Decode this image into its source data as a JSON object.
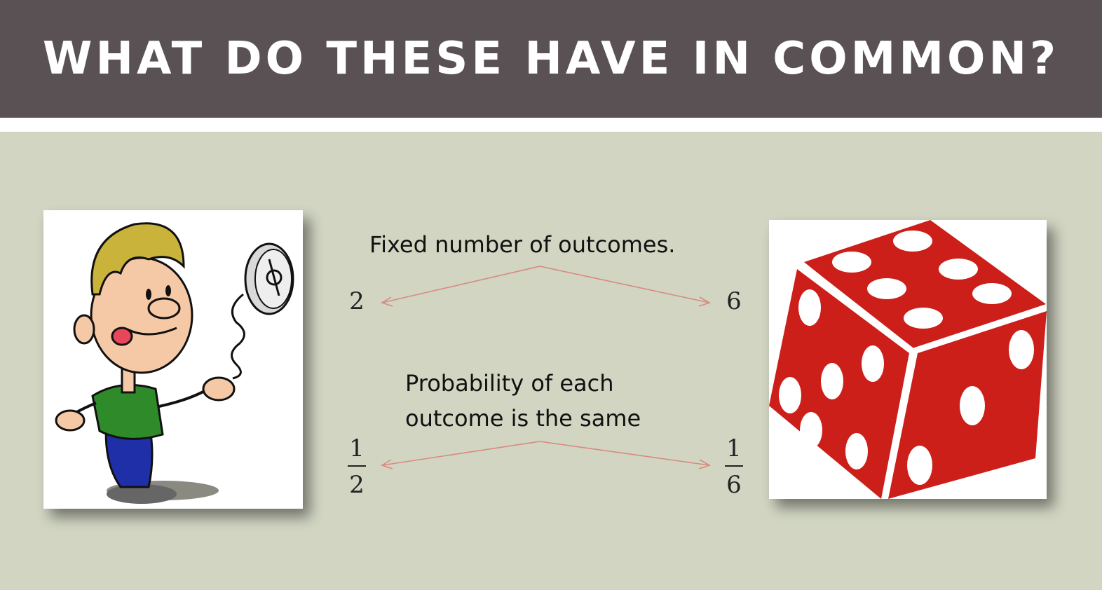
{
  "slide": {
    "title": "WHAT DO THESE HAVE IN COMMON?",
    "caption_outcomes": "Fixed number of outcomes.",
    "caption_probability_line1": "Probability of each",
    "caption_probability_line2": "outcome is the same",
    "coin_outcomes": "2",
    "die_outcomes": "6",
    "coin_prob_num": "1",
    "coin_prob_den": "2",
    "die_prob_num": "1",
    "die_prob_den": "6"
  },
  "images": {
    "coin": "boy-flipping-coin-image",
    "die": "red-die-image"
  },
  "colors": {
    "title_bar": "#5a5155",
    "background": "#d1d5c2",
    "arrow": "#d98a80",
    "die_red": "#cc1f1a"
  }
}
